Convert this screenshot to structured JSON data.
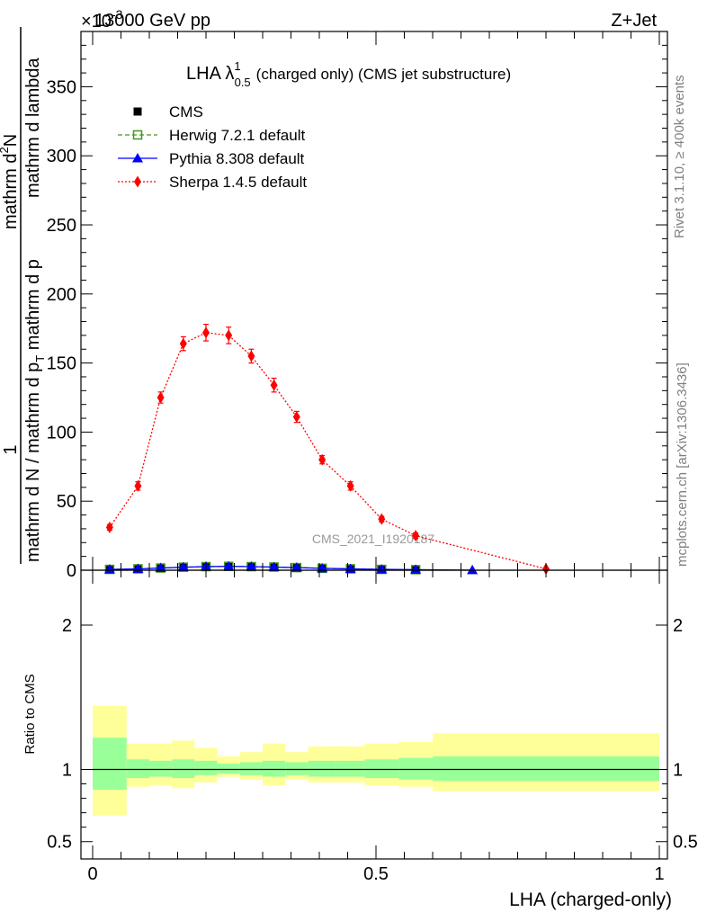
{
  "header": {
    "energy": "13000 GeV pp",
    "process": "Z+Jet",
    "exponent_label": "×10",
    "exponent_power": "-3"
  },
  "side_labels": {
    "rivet": "Rivet 3.1.10, ≥ 400k events",
    "mcplots": "mcplots.cern.ch [arXiv:1306.3436]"
  },
  "watermark": "CMS_2021_I1920187",
  "title": {
    "prefix": "LHA λ",
    "superscript": "1",
    "subscript": "0.5",
    "rest": "(charged only) (CMS jet substructure)"
  },
  "y_axis_label": {
    "one": "1",
    "denominator": "mathrm d N / mathrm d p",
    "denominator_sub": "T",
    "denominator_tail": " mathrm d p",
    "numerator": "mathrm d",
    "numerator_sup": "2",
    "numerator_tail": "N",
    "lambda_part": " mathrm d lambda"
  },
  "ratio_label": "Ratio to CMS",
  "x_axis_label": "LHA (charged-only)",
  "legend": [
    {
      "name": "CMS",
      "color": "#000000",
      "marker": "square-filled",
      "line": "none"
    },
    {
      "name": "Herwig 7.2.1 default",
      "color": "#3d9a1a",
      "marker": "square-open",
      "line": "dashed"
    },
    {
      "name": "Pythia 8.308 default",
      "color": "#0000ff",
      "marker": "triangle",
      "line": "solid"
    },
    {
      "name": "Sherpa 1.4.5 default",
      "color": "#ff0000",
      "marker": "diamond",
      "line": "dotted"
    }
  ],
  "chart_data": {
    "type": "line",
    "main": {
      "xlim": [
        0,
        1
      ],
      "ylim": [
        0,
        390
      ],
      "y_ticks": [
        0,
        50,
        100,
        150,
        200,
        250,
        300,
        350
      ],
      "y_tick_labels": [
        "0",
        "50",
        "100",
        "150",
        "200",
        "250",
        "300",
        "350"
      ],
      "bins": [
        [
          0,
          0.06
        ],
        [
          0.06,
          0.1
        ],
        [
          0.1,
          0.14
        ],
        [
          0.14,
          0.18
        ],
        [
          0.18,
          0.22
        ],
        [
          0.22,
          0.26
        ],
        [
          0.26,
          0.3
        ],
        [
          0.3,
          0.34
        ],
        [
          0.34,
          0.38
        ],
        [
          0.38,
          0.43
        ],
        [
          0.43,
          0.48
        ],
        [
          0.48,
          0.54
        ],
        [
          0.54,
          0.6
        ],
        [
          0.6,
          1.0
        ]
      ],
      "series": [
        {
          "name": "CMS",
          "x": [
            0.03,
            0.08,
            0.12,
            0.16,
            0.2,
            0.24,
            0.28,
            0.32,
            0.36,
            0.405,
            0.455,
            0.51,
            0.57
          ],
          "values": [
            0.6,
            1.0,
            1.6,
            2.2,
            2.6,
            2.8,
            2.6,
            2.3,
            1.9,
            1.4,
            1.0,
            0.6,
            0.4
          ]
        },
        {
          "name": "Herwig 7.2.1 default",
          "x": [
            0.03,
            0.08,
            0.12,
            0.16,
            0.2,
            0.24,
            0.28,
            0.32,
            0.36,
            0.405,
            0.455,
            0.51,
            0.57
          ],
          "values": [
            0.6,
            1.0,
            1.6,
            2.2,
            2.6,
            2.8,
            2.6,
            2.3,
            1.9,
            1.4,
            1.0,
            0.6,
            0.4
          ]
        },
        {
          "name": "Pythia 8.308 default",
          "x": [
            0.03,
            0.08,
            0.12,
            0.16,
            0.2,
            0.24,
            0.28,
            0.32,
            0.36,
            0.405,
            0.455,
            0.51,
            0.57,
            0.67
          ],
          "values": [
            0.6,
            1.0,
            1.6,
            2.2,
            2.6,
            2.8,
            2.6,
            2.3,
            1.9,
            1.4,
            1.0,
            0.6,
            0.4,
            0.1
          ]
        },
        {
          "name": "Sherpa 1.4.5 default",
          "x": [
            0.03,
            0.08,
            0.12,
            0.16,
            0.2,
            0.24,
            0.28,
            0.32,
            0.36,
            0.405,
            0.455,
            0.51,
            0.57,
            0.8
          ],
          "values": [
            31,
            61,
            125,
            164,
            172,
            170,
            155,
            134,
            111,
            80,
            61,
            37,
            25,
            1
          ],
          "errors": [
            2,
            3,
            4,
            5,
            6,
            6,
            5,
            5,
            4,
            3,
            3,
            2,
            2,
            0.5
          ]
        }
      ]
    },
    "ratio": {
      "ylabel": "Ratio to CMS",
      "ylim": [
        0.38,
        2.38
      ],
      "y_ticks": [
        0.5,
        1,
        2
      ],
      "y_tick_labels": [
        "0.5",
        "1",
        "2"
      ],
      "reference": 1,
      "bands": [
        {
          "x": [
            0,
            0.06
          ],
          "inner": [
            0.86,
            1.22
          ],
          "outer": [
            0.68,
            1.44
          ]
        },
        {
          "x": [
            0.06,
            0.1
          ],
          "inner": [
            0.94,
            1.07
          ],
          "outer": [
            0.88,
            1.18
          ]
        },
        {
          "x": [
            0.1,
            0.14
          ],
          "inner": [
            0.95,
            1.06
          ],
          "outer": [
            0.89,
            1.18
          ]
        },
        {
          "x": [
            0.14,
            0.18
          ],
          "inner": [
            0.94,
            1.07
          ],
          "outer": [
            0.87,
            1.2
          ]
        },
        {
          "x": [
            0.18,
            0.22
          ],
          "inner": [
            0.96,
            1.06
          ],
          "outer": [
            0.91,
            1.15
          ]
        },
        {
          "x": [
            0.22,
            0.26
          ],
          "inner": [
            0.97,
            1.04
          ],
          "outer": [
            0.95,
            1.09
          ]
        },
        {
          "x": [
            0.26,
            0.3
          ],
          "inner": [
            0.96,
            1.05
          ],
          "outer": [
            0.93,
            1.12
          ]
        },
        {
          "x": [
            0.3,
            0.34
          ],
          "inner": [
            0.95,
            1.06
          ],
          "outer": [
            0.89,
            1.18
          ]
        },
        {
          "x": [
            0.34,
            0.38
          ],
          "inner": [
            0.96,
            1.05
          ],
          "outer": [
            0.93,
            1.12
          ]
        },
        {
          "x": [
            0.38,
            0.43
          ],
          "inner": [
            0.95,
            1.06
          ],
          "outer": [
            0.91,
            1.16
          ]
        },
        {
          "x": [
            0.43,
            0.48
          ],
          "inner": [
            0.95,
            1.06
          ],
          "outer": [
            0.91,
            1.16
          ]
        },
        {
          "x": [
            0.48,
            0.54
          ],
          "inner": [
            0.94,
            1.07
          ],
          "outer": [
            0.89,
            1.18
          ]
        },
        {
          "x": [
            0.54,
            0.6
          ],
          "inner": [
            0.93,
            1.08
          ],
          "outer": [
            0.88,
            1.19
          ]
        },
        {
          "x": [
            0.6,
            1.0
          ],
          "inner": [
            0.92,
            1.09
          ],
          "outer": [
            0.85,
            1.25
          ]
        }
      ],
      "band_colors": {
        "inner": "#99ff99",
        "outer": "#ffff99"
      }
    },
    "x_ticks": [
      0,
      0.5,
      1
    ],
    "x_tick_labels": [
      "0",
      "0.5",
      "1"
    ],
    "xlabel": "LHA (charged-only)"
  }
}
